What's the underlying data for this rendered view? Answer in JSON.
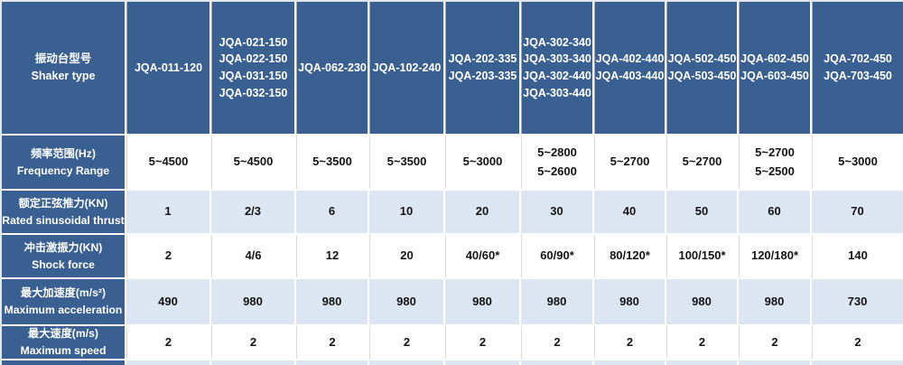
{
  "corner": {
    "text": "振动台型号\nShaker type"
  },
  "columns": [
    {
      "text": "JQA-011-120"
    },
    {
      "text": "JQA-021-150\nJQA-022-150\nJQA-031-150\nJQA-032-150"
    },
    {
      "text": "JQA-062-230"
    },
    {
      "text": "JQA-102-240"
    },
    {
      "text": "JQA-202-335\nJQA-203-335"
    },
    {
      "text": "JQA-302-340\nJQA-303-340\nJQA-302-440\nJQA-303-440"
    },
    {
      "text": "JQA-402-440\nJQA-403-440"
    },
    {
      "text": "JQA-502-450\nJQA-503-450"
    },
    {
      "text": "JQA-602-450\nJQA-603-450"
    },
    {
      "text": "JQA-702-450\nJQA-703-450"
    }
  ],
  "rows": [
    {
      "label": "频率范围(Hz)\nFrequency Range",
      "bg": "white",
      "values": [
        "5~4500",
        "5~4500",
        "5~3500",
        "5~3500",
        "5~3000",
        "5~2800\n5~2600",
        "5~2700",
        "5~2700",
        "5~2700\n5~2500",
        "5~3000"
      ]
    },
    {
      "label": "额定正弦推力(KN)\nRated sinusoidal thrust",
      "bg": "lightblue",
      "values": [
        "1",
        "2/3",
        "6",
        "10",
        "20",
        "30",
        "40",
        "50",
        "60",
        "70"
      ]
    },
    {
      "label": "冲击激振力(KN)\nShock force",
      "bg": "white",
      "values": [
        "2",
        "4/6",
        "12",
        "20",
        "40/60*",
        "60/90*",
        "80/120*",
        "100/150*",
        "120/180*",
        "140"
      ]
    },
    {
      "label": "最大加速度(m/s²)\nMaximum acceleration",
      "bg": "lightblue",
      "values": [
        "490",
        "980",
        "980",
        "980",
        "980",
        "980",
        "980",
        "980",
        "980",
        "730"
      ]
    },
    {
      "label": "最大速度(m/s)\nMaximum speed",
      "bg": "white",
      "values": [
        "2",
        "2",
        "2",
        "2",
        "2",
        "2",
        "2",
        "2",
        "2",
        "2"
      ]
    }
  ],
  "colors": {
    "header_blue": "#396091",
    "row_light_blue": "#dce6f2",
    "row_white": "#ffffff",
    "header_text": "#ffffff",
    "data_text": "#141414"
  }
}
